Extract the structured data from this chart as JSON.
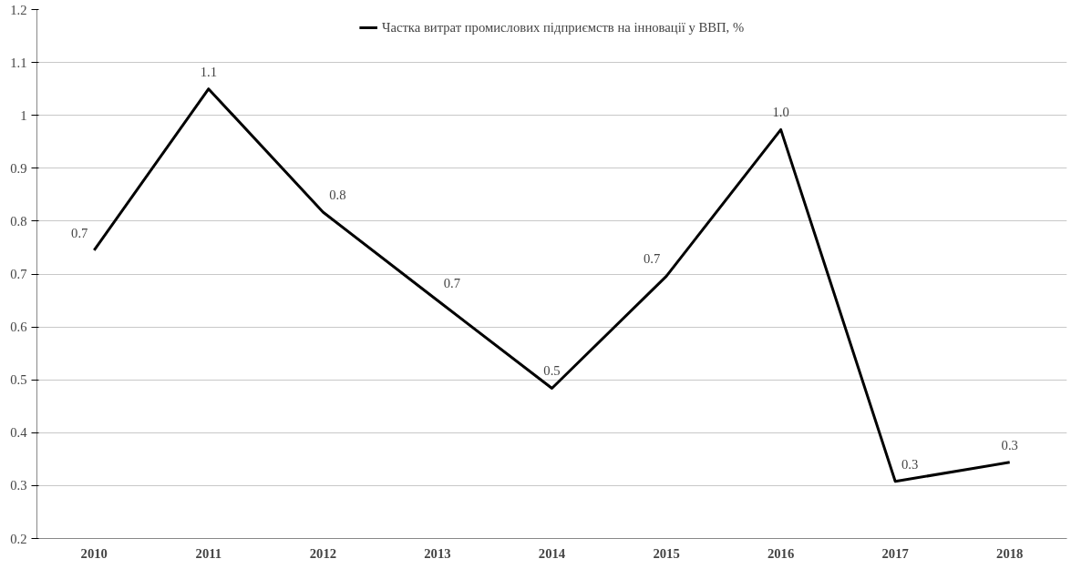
{
  "chart_data": {
    "type": "line",
    "categories": [
      "2010",
      "2011",
      "2012",
      "2013",
      "2014",
      "2015",
      "2016",
      "2017",
      "2018"
    ],
    "series": [
      {
        "name": "Частка витрат промислових підприємств на інновації у ВВП, %",
        "color": "#000000",
        "values": [
          0.745,
          1.05,
          0.817,
          0.65,
          0.484,
          0.696,
          0.973,
          0.308,
          0.344
        ],
        "value_labels": [
          "0.7",
          "1.1",
          "0.8",
          "0.7",
          "0.5",
          "0.7",
          "1.0",
          "0.3",
          "0.3"
        ]
      }
    ],
    "ylim": [
      0.2,
      1.2
    ],
    "yticks": [
      0.2,
      0.3,
      0.4,
      0.5,
      0.6,
      0.7,
      0.8,
      0.9,
      1,
      1.1,
      1.2
    ],
    "grid": "y",
    "legend": "top",
    "marker": "none",
    "line_style": "solid"
  }
}
